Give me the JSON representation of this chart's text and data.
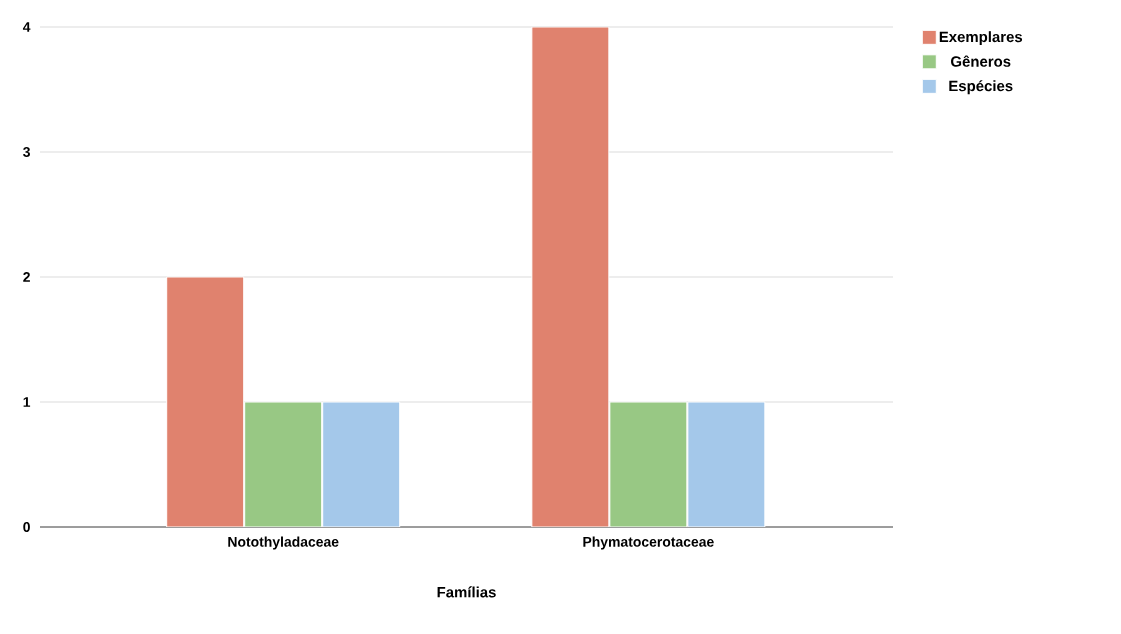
{
  "chart_data": {
    "type": "bar",
    "xlabel": "Famílias",
    "categories": [
      "Notothyladaceae",
      "Phymatocerotaceae"
    ],
    "series": [
      {
        "name": "Exemplares",
        "color": "#e0826e",
        "values": [
          2,
          4
        ]
      },
      {
        "name": "Gêneros",
        "color": "#98c884",
        "values": [
          1,
          1
        ]
      },
      {
        "name": "Espécies",
        "color": "#a4c8ea",
        "values": [
          1,
          1
        ]
      }
    ],
    "ylim": [
      0,
      4
    ],
    "yticks": [
      0,
      1,
      2,
      3,
      4
    ],
    "grid": "y",
    "legend": "top right"
  }
}
